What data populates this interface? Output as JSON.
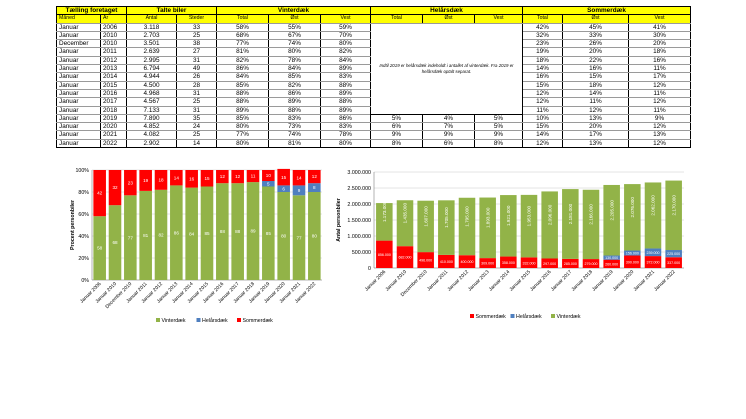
{
  "table": {
    "group_headers": [
      "Tælling foretaget",
      "Talte biler",
      "Vinterdæk",
      "Helårsdæk",
      "Sommerdæk"
    ],
    "sub_headers": [
      "Måned",
      "År",
      "Antal",
      "Steder",
      "Total",
      "Øst",
      "Vest",
      "Total",
      "Øst",
      "Vest",
      "Total",
      "Øst",
      "Vest"
    ],
    "note": "Indtil 2019 er helårsdæk indeholdt i antallet af vinterdæk. Fra 2019 er helårsdæk optalt separat.",
    "rows": [
      [
        "Januar",
        "2006",
        "3.118",
        "33",
        "58%",
        "55%",
        "59%",
        "",
        "",
        "",
        "42%",
        "45%",
        "41%"
      ],
      [
        "Januar",
        "2010",
        "2.703",
        "25",
        "68%",
        "67%",
        "70%",
        "",
        "",
        "",
        "32%",
        "33%",
        "30%"
      ],
      [
        "December",
        "2010",
        "3.501",
        "38",
        "77%",
        "74%",
        "80%",
        "",
        "",
        "",
        "23%",
        "26%",
        "20%"
      ],
      [
        "Januar",
        "2011",
        "2.639",
        "27",
        "81%",
        "80%",
        "82%",
        "",
        "",
        "",
        "19%",
        "20%",
        "18%"
      ],
      [
        "Januar",
        "2012",
        "2.995",
        "31",
        "82%",
        "78%",
        "84%",
        "",
        "",
        "",
        "18%",
        "22%",
        "16%"
      ],
      [
        "Januar",
        "2013",
        "6.794",
        "49",
        "86%",
        "84%",
        "89%",
        "",
        "",
        "",
        "14%",
        "16%",
        "11%"
      ],
      [
        "Januar",
        "2014",
        "4.944",
        "26",
        "84%",
        "85%",
        "83%",
        "",
        "",
        "",
        "16%",
        "15%",
        "17%"
      ],
      [
        "Januar",
        "2015",
        "4.500",
        "28",
        "85%",
        "82%",
        "88%",
        "",
        "",
        "",
        "15%",
        "18%",
        "12%"
      ],
      [
        "Januar",
        "2016",
        "4.968",
        "31",
        "88%",
        "86%",
        "89%",
        "",
        "",
        "",
        "12%",
        "14%",
        "11%"
      ],
      [
        "Januar",
        "2017",
        "4.567",
        "25",
        "88%",
        "89%",
        "88%",
        "",
        "",
        "",
        "12%",
        "11%",
        "12%"
      ],
      [
        "Januar",
        "2018",
        "7.133",
        "31",
        "89%",
        "88%",
        "89%",
        "",
        "",
        "",
        "11%",
        "12%",
        "11%"
      ],
      [
        "Januar",
        "2019",
        "7.890",
        "35",
        "85%",
        "83%",
        "86%",
        "5%",
        "4%",
        "5%",
        "10%",
        "13%",
        "9%"
      ],
      [
        "Januar",
        "2020",
        "4.852",
        "24",
        "80%",
        "73%",
        "83%",
        "6%",
        "7%",
        "5%",
        "15%",
        "20%",
        "12%"
      ],
      [
        "Januar",
        "2021",
        "4.082",
        "25",
        "77%",
        "74%",
        "78%",
        "9%",
        "9%",
        "9%",
        "14%",
        "17%",
        "13%"
      ],
      [
        "Januar",
        "2022",
        "2.902",
        "14",
        "80%",
        "81%",
        "80%",
        "8%",
        "6%",
        "8%",
        "12%",
        "13%",
        "12%"
      ]
    ]
  },
  "colors": {
    "vinter": "#92b348",
    "helaar": "#4f7fbf",
    "sommer": "#ff0000",
    "table_header": "#ffff00"
  },
  "chart_data": [
    {
      "type": "bar",
      "stacked": true,
      "normalized": true,
      "ylabel": "Procent personbiler",
      "ylim": [
        0,
        100
      ],
      "yticks": [
        "0%",
        "20%",
        "40%",
        "60%",
        "80%",
        "100%"
      ],
      "categories": [
        "Januar 2006",
        "Januar 2010",
        "December 2010",
        "Januar 2011",
        "Januar 2012",
        "Januar 2013",
        "Januar 2014",
        "Januar 2015",
        "Januar 2016",
        "Januar 2017",
        "Januar 2018",
        "Januar 2019",
        "Januar 2020",
        "Januar 2021",
        "Januar 2022"
      ],
      "series": [
        {
          "name": "Vinterdæk",
          "values": [
            58,
            68,
            77,
            81,
            82,
            86,
            84,
            85,
            88,
            88,
            89,
            85,
            80,
            77,
            80
          ]
        },
        {
          "name": "Helårsdæk",
          "values": [
            0,
            0,
            0,
            0,
            0,
            0,
            0,
            0,
            0,
            0,
            0,
            5,
            6,
            9,
            8
          ]
        },
        {
          "name": "Sommerdæk",
          "values": [
            42,
            32,
            23,
            19,
            18,
            14,
            16,
            15,
            12,
            12,
            11,
            10,
            15,
            14,
            12
          ]
        }
      ],
      "legend": "bottom"
    },
    {
      "type": "bar",
      "stacked": true,
      "ylabel": "Antal personbiler",
      "ylim": [
        0,
        3000000
      ],
      "yticks": [
        "0",
        "500.000",
        "1.000.000",
        "1.500.000",
        "2.000.000",
        "2.500.000",
        "3.000.000"
      ],
      "categories": [
        "Januar 2006",
        "Januar 2010",
        "December 2010",
        "Januar 2011",
        "Januar 2012",
        "Januar 2013",
        "Januar 2014",
        "Januar 2015",
        "Januar 2016",
        "Januar 2017",
        "Januar 2018",
        "Januar 2019",
        "Januar 2020",
        "Januar 2021",
        "Januar 2022"
      ],
      "series": [
        {
          "name": "Sommerdæk",
          "values": [
            856000,
            682000,
            496000,
            410000,
            400000,
            309000,
            358000,
            332000,
            297000,
            285000,
            279000,
            260000,
            390000,
            372000,
            337000
          ],
          "labels": [
            "856.000",
            "682.000",
            "496.000",
            "410.000",
            "400.000",
            "309.000",
            "358.000",
            "332.000",
            "297.000",
            "285.000",
            "279.000",
            "260.000",
            "390.000",
            "372.000",
            "337.000"
          ]
        },
        {
          "name": "Helårsdæk",
          "values": [
            0,
            0,
            0,
            0,
            0,
            0,
            0,
            0,
            0,
            0,
            0,
            130000,
            156000,
            239000,
            225000
          ],
          "labels": [
            "",
            "",
            "",
            "",
            "",
            "",
            "",
            "",
            "",
            "",
            "",
            "130.000",
            "156.000",
            "239.000",
            "225.000"
          ]
        },
        {
          "name": "Vinterdæk",
          "values": [
            1173000,
            1435000,
            1607000,
            1705000,
            1795000,
            1893000,
            1921000,
            1953000,
            2096000,
            2181000,
            2166000,
            2205000,
            2076000,
            2062000,
            2170000
          ],
          "labels": [
            "1.173.000",
            "1.435.000",
            "1.607.000",
            "1.705.000",
            "1.795.000",
            "1.893.000",
            "1.921.000",
            "1.953.000",
            "2.096.000",
            "2.181.000",
            "2.166.000",
            "2.205.000",
            "2.076.000",
            "2.062.000",
            "2.170.000"
          ]
        }
      ],
      "legend": "bottom"
    }
  ]
}
